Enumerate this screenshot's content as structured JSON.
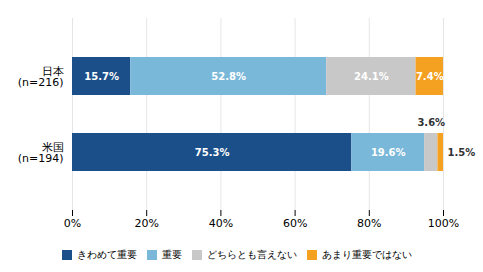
{
  "chart_data": {
    "type": "bar",
    "orientation": "horizontal",
    "stacked": true,
    "categories": [
      "米国\n(n=194)",
      "日本\n(n=216)"
    ],
    "series": [
      {
        "name": "きわめて重要",
        "color": "#1B4F8A",
        "values": [
          75.3,
          15.7
        ],
        "value_labels": [
          "75.3%",
          "15.7%"
        ]
      },
      {
        "name": "重要",
        "color": "#7AB8D9",
        "values": [
          19.6,
          52.8
        ],
        "value_labels": [
          "19.6%",
          "52.8%"
        ]
      },
      {
        "name": "どちらとも言えない",
        "color": "#C8C8C8",
        "values": [
          3.6,
          24.1
        ],
        "value_labels": [
          "3.6%",
          "24.1%"
        ]
      },
      {
        "name": "あまり重要ではない",
        "color": "#F4A020",
        "values": [
          1.5,
          7.4
        ],
        "value_labels": [
          "1.5%",
          "7.4%"
        ]
      }
    ],
    "xlim": [
      0,
      100
    ],
    "xticks": [
      {
        "value": 0,
        "label": "0%"
      },
      {
        "value": 20,
        "label": "20%"
      },
      {
        "value": 40,
        "label": "40%"
      },
      {
        "value": 60,
        "label": "60%"
      },
      {
        "value": 80,
        "label": "80%"
      },
      {
        "value": 100,
        "label": "100%"
      }
    ],
    "grid": true,
    "legend": "bottom",
    "data_labels": true
  }
}
